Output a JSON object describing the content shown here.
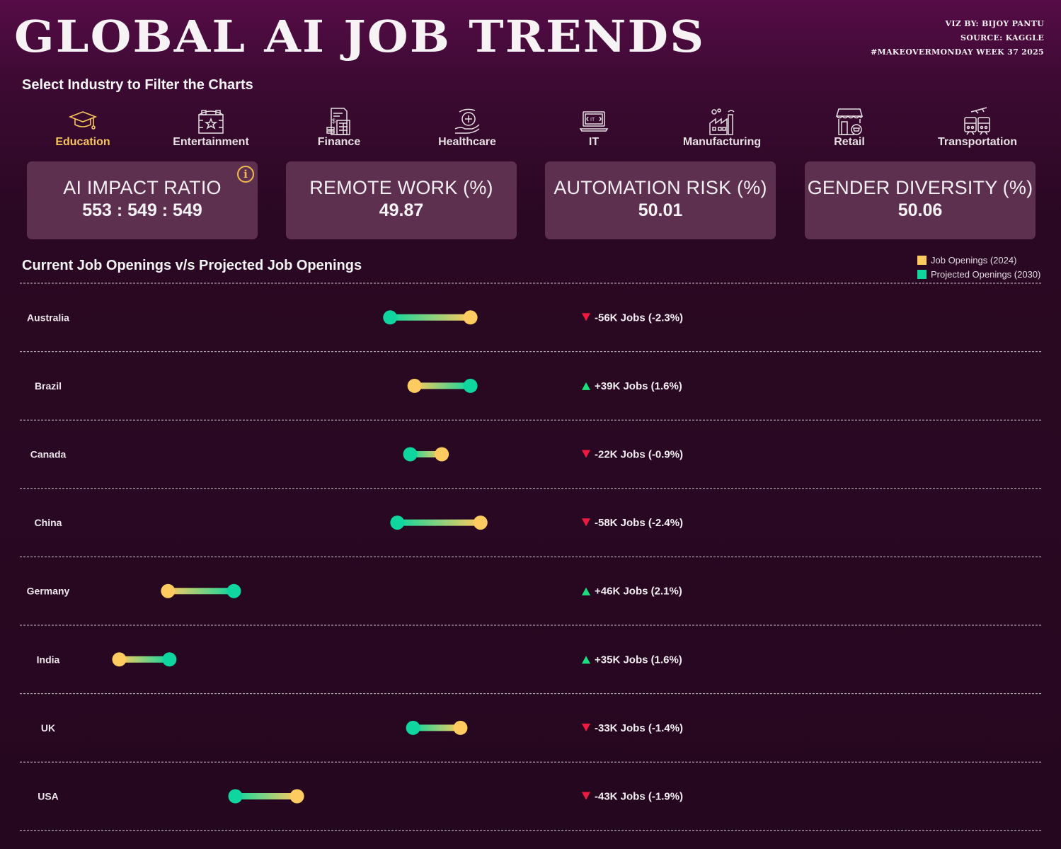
{
  "header": {
    "title": "GLOBAL AI JOB TRENDS",
    "credits": [
      "VIZ BY: BIJOY PANTU",
      "SOURCE: KAGGLE",
      "#MAKEOVERMONDAY WEEK 37 2025"
    ]
  },
  "filter": {
    "label": "Select Industry to Filter the Charts",
    "active": "Education",
    "industries": [
      {
        "label": "Education",
        "icon": "graduation-cap-icon"
      },
      {
        "label": "Entertainment",
        "icon": "theater-icon"
      },
      {
        "label": "Finance",
        "icon": "calculator-invoice-icon"
      },
      {
        "label": "Healthcare",
        "icon": "hand-medical-cross-icon"
      },
      {
        "label": "IT",
        "icon": "laptop-code-icon"
      },
      {
        "label": "Manufacturing",
        "icon": "factory-icon"
      },
      {
        "label": "Retail",
        "icon": "store-cart-icon"
      },
      {
        "label": "Transportation",
        "icon": "train-plane-icon"
      }
    ]
  },
  "kpis": [
    {
      "title": "AI IMPACT RATIO",
      "value": "553 : 549 : 549",
      "info": "i"
    },
    {
      "title": "REMOTE WORK (%)",
      "value": "49.87"
    },
    {
      "title": "AUTOMATION RISK (%)",
      "value": "50.01"
    },
    {
      "title": "GENDER DIVERSITY (%)",
      "value": "50.06"
    }
  ],
  "colors": {
    "current": "#fdcb5f",
    "projected": "#0fd69e",
    "up": "#18e07c",
    "down": "#f0193f",
    "active": "#f7c55e"
  },
  "chart_data": {
    "type": "dumbbell",
    "title": "Current Job Openings v/s Projected Job Openings",
    "legend": {
      "position": "top-right",
      "entries": [
        "Job Openings (2024)",
        "Projected Openings (2030)"
      ]
    },
    "grid": false,
    "xlim": [
      2160,
      2480
    ],
    "unit": "thousand jobs",
    "rows": [
      {
        "country": "Australia",
        "current": 2425,
        "projected": 2369,
        "change": "-56K Jobs (-2.3%)",
        "direction": "down"
      },
      {
        "country": "Brazil",
        "current": 2386,
        "projected": 2425,
        "change": "+39K Jobs (1.6%)",
        "direction": "up"
      },
      {
        "country": "Canada",
        "current": 2405,
        "projected": 2383,
        "change": "-22K Jobs (-0.9%)",
        "direction": "down"
      },
      {
        "country": "China",
        "current": 2432,
        "projected": 2374,
        "change": "-58K Jobs (-2.4%)",
        "direction": "down"
      },
      {
        "country": "Germany",
        "current": 2214,
        "projected": 2260,
        "change": "+46K Jobs (2.1%)",
        "direction": "up"
      },
      {
        "country": "India",
        "current": 2180,
        "projected": 2215,
        "change": "+35K Jobs (1.6%)",
        "direction": "up"
      },
      {
        "country": "UK",
        "current": 2418,
        "projected": 2385,
        "change": "-33K Jobs (-1.4%)",
        "direction": "down"
      },
      {
        "country": "USA",
        "current": 2304,
        "projected": 2261,
        "change": "-43K Jobs (-1.9%)",
        "direction": "down"
      }
    ]
  }
}
